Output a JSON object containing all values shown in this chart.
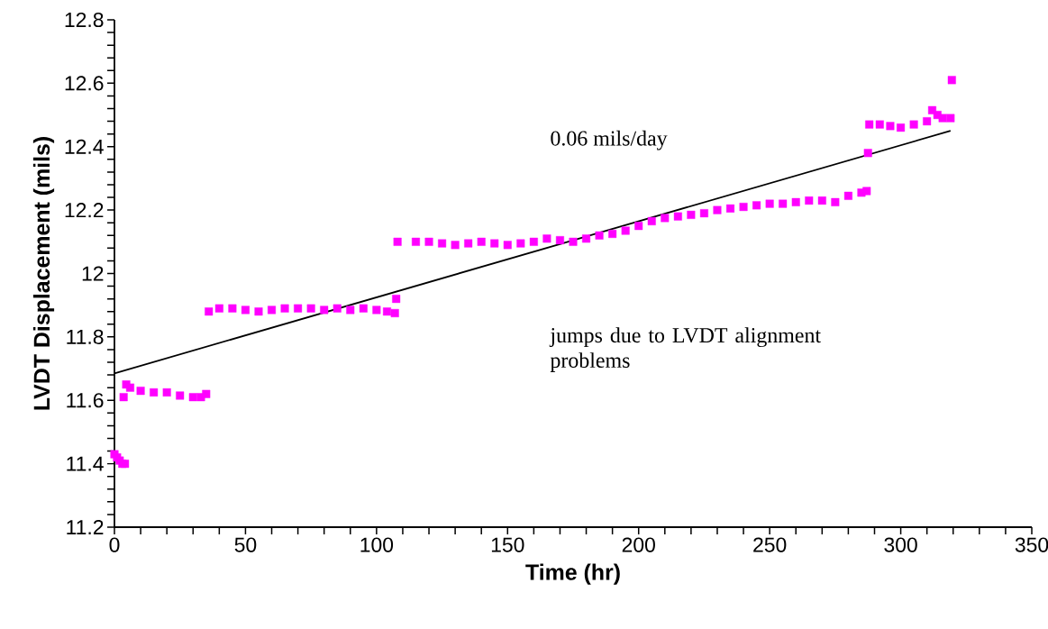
{
  "chart_data": {
    "type": "scatter",
    "xlabel": "Time (hr)",
    "ylabel": "LVDT Displacement (mils)",
    "xlim": [
      0,
      350
    ],
    "xticks": [
      0,
      50,
      100,
      150,
      200,
      250,
      300,
      350
    ],
    "ylim": [
      11.2,
      12.8
    ],
    "yticks": [
      11.2,
      11.4,
      11.6,
      11.8,
      12,
      12.2,
      12.4,
      12.6,
      12.8
    ],
    "marker": "square",
    "annotations": [
      "0.06 mils/day",
      "jumps due to LVDT alignment problems"
    ],
    "series": [
      {
        "color": "#ff00ff",
        "x": [
          0,
          1,
          2,
          3,
          4,
          3.5,
          4.5,
          6,
          10,
          15,
          20,
          25,
          30,
          33,
          35,
          36,
          40,
          45,
          50,
          55,
          60,
          65,
          70,
          75,
          80,
          85,
          90,
          95,
          100,
          104,
          107,
          107.5,
          108,
          115,
          120,
          125,
          130,
          135,
          140,
          145,
          150,
          155,
          160,
          165,
          170,
          175,
          180,
          185,
          190,
          195,
          200,
          205,
          210,
          215,
          220,
          225,
          230,
          235,
          240,
          245,
          250,
          255,
          260,
          265,
          270,
          275,
          280,
          285,
          287,
          287.5,
          288,
          292,
          296,
          300,
          305,
          310,
          312,
          314,
          316,
          319,
          319.5
        ],
        "values": [
          11.43,
          11.42,
          11.41,
          11.4,
          11.4,
          11.61,
          11.65,
          11.64,
          11.63,
          11.625,
          11.625,
          11.615,
          11.61,
          11.61,
          11.62,
          11.88,
          11.89,
          11.89,
          11.885,
          11.88,
          11.885,
          11.89,
          11.89,
          11.89,
          11.885,
          11.89,
          11.885,
          11.89,
          11.885,
          11.88,
          11.875,
          11.92,
          12.1,
          12.1,
          12.1,
          12.095,
          12.09,
          12.095,
          12.1,
          12.095,
          12.09,
          12.095,
          12.1,
          12.11,
          12.105,
          12.1,
          12.11,
          12.12,
          12.125,
          12.135,
          12.15,
          12.165,
          12.175,
          12.18,
          12.185,
          12.19,
          12.2,
          12.205,
          12.21,
          12.215,
          12.22,
          12.22,
          12.225,
          12.23,
          12.23,
          12.225,
          12.245,
          12.255,
          12.26,
          12.38,
          12.47,
          12.47,
          12.465,
          12.46,
          12.47,
          12.48,
          12.515,
          12.5,
          12.49,
          12.49,
          12.61
        ]
      },
      {
        "color": "#000000",
        "type": "line",
        "marker": "none",
        "x": [
          0,
          319
        ],
        "values": [
          11.685,
          12.45
        ]
      }
    ]
  }
}
